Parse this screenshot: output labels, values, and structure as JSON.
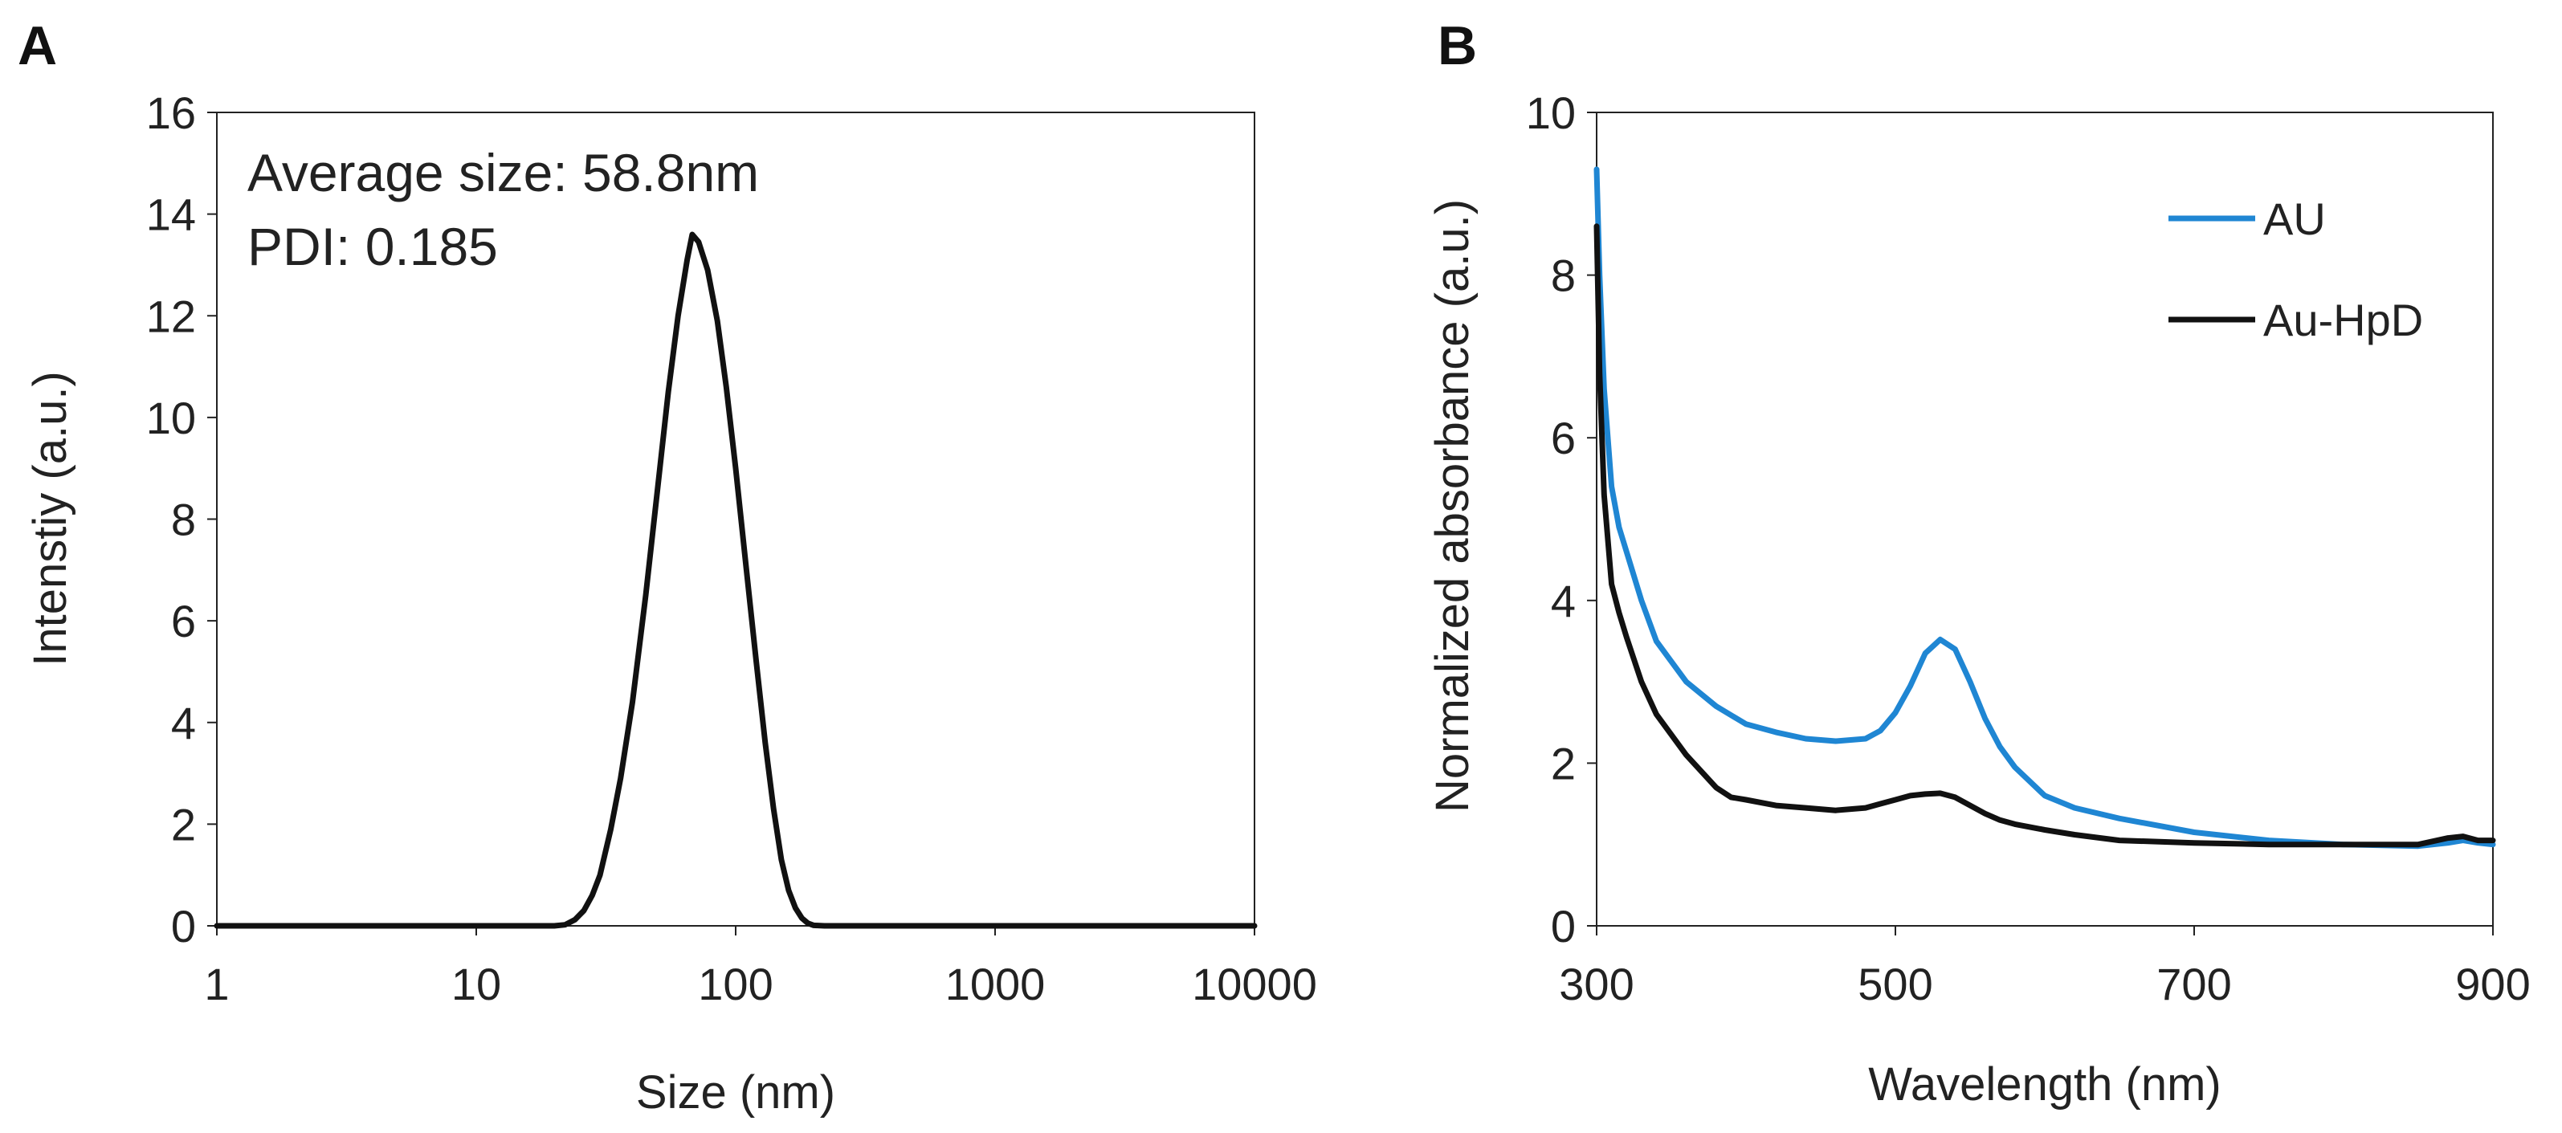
{
  "colors": {
    "au": "#1f86d3",
    "au_hpd": "#111111",
    "axis": "#222222",
    "dls": "#111111"
  },
  "chart_data": [
    {
      "panel": "A",
      "type": "line",
      "xscale": "log",
      "xlabel": "Size (nm)",
      "ylabel": "Intenstiy (a.u.)",
      "xlim": [
        1,
        10000
      ],
      "ylim": [
        0,
        16
      ],
      "xticks": [
        "1",
        "10",
        "100",
        "1000",
        "10000"
      ],
      "yticks": [
        "0",
        "2",
        "4",
        "6",
        "8",
        "10",
        "12",
        "14",
        "16"
      ],
      "annotations": [
        "Average size: 58.8nm",
        "PDI: 0.185"
      ],
      "series": [
        {
          "name": "Intensity",
          "x": [
            1,
            10,
            20,
            22,
            24,
            26,
            28,
            30,
            33,
            36,
            40,
            45,
            50,
            55,
            60,
            65,
            68,
            72,
            78,
            85,
            92,
            100,
            110,
            120,
            130,
            140,
            150,
            160,
            170,
            180,
            190,
            200,
            220,
            1000,
            10000
          ],
          "y": [
            0,
            0,
            0,
            0.02,
            0.12,
            0.3,
            0.6,
            1.0,
            1.9,
            2.9,
            4.4,
            6.5,
            8.6,
            10.5,
            12.0,
            13.1,
            13.6,
            13.45,
            12.9,
            11.9,
            10.6,
            9.0,
            7.0,
            5.2,
            3.6,
            2.3,
            1.3,
            0.7,
            0.35,
            0.15,
            0.05,
            0.01,
            0,
            0,
            0
          ]
        }
      ]
    },
    {
      "panel": "B",
      "type": "line",
      "xlabel": "Wavelength (nm)",
      "ylabel": "Normalized absorbance (a.u.)",
      "xlim": [
        300,
        900
      ],
      "ylim": [
        0,
        10
      ],
      "xticks": [
        "300",
        "500",
        "700",
        "900"
      ],
      "yticks": [
        "0",
        "2",
        "4",
        "6",
        "8",
        "10"
      ],
      "legend_position": "top-right",
      "series": [
        {
          "name": "AU",
          "x": [
            300,
            302,
            305,
            310,
            315,
            320,
            330,
            340,
            350,
            360,
            380,
            400,
            420,
            440,
            460,
            480,
            490,
            500,
            510,
            520,
            530,
            540,
            550,
            560,
            570,
            580,
            600,
            620,
            650,
            700,
            750,
            800,
            850,
            870,
            880,
            890,
            900
          ],
          "y": [
            9.3,
            8.0,
            6.6,
            5.4,
            4.9,
            4.6,
            4.0,
            3.5,
            3.25,
            3.0,
            2.7,
            2.48,
            2.38,
            2.3,
            2.27,
            2.3,
            2.4,
            2.62,
            2.95,
            3.35,
            3.52,
            3.4,
            3.0,
            2.55,
            2.2,
            1.95,
            1.6,
            1.45,
            1.32,
            1.15,
            1.05,
            1.0,
            0.98,
            1.02,
            1.05,
            1.02,
            1.0
          ]
        },
        {
          "name": "Au-HpD",
          "x": [
            300,
            302,
            305,
            310,
            315,
            320,
            330,
            340,
            350,
            360,
            370,
            380,
            390,
            400,
            420,
            440,
            460,
            480,
            490,
            500,
            510,
            520,
            530,
            540,
            550,
            560,
            570,
            580,
            600,
            620,
            650,
            700,
            750,
            800,
            850,
            870,
            880,
            890,
            900
          ],
          "y": [
            8.6,
            6.8,
            5.3,
            4.2,
            3.85,
            3.55,
            3.0,
            2.6,
            2.35,
            2.1,
            1.9,
            1.7,
            1.58,
            1.55,
            1.48,
            1.45,
            1.42,
            1.45,
            1.5,
            1.55,
            1.6,
            1.62,
            1.63,
            1.58,
            1.48,
            1.38,
            1.3,
            1.25,
            1.18,
            1.12,
            1.05,
            1.02,
            1.0,
            1.0,
            1.0,
            1.08,
            1.1,
            1.05,
            1.05
          ]
        }
      ]
    }
  ]
}
